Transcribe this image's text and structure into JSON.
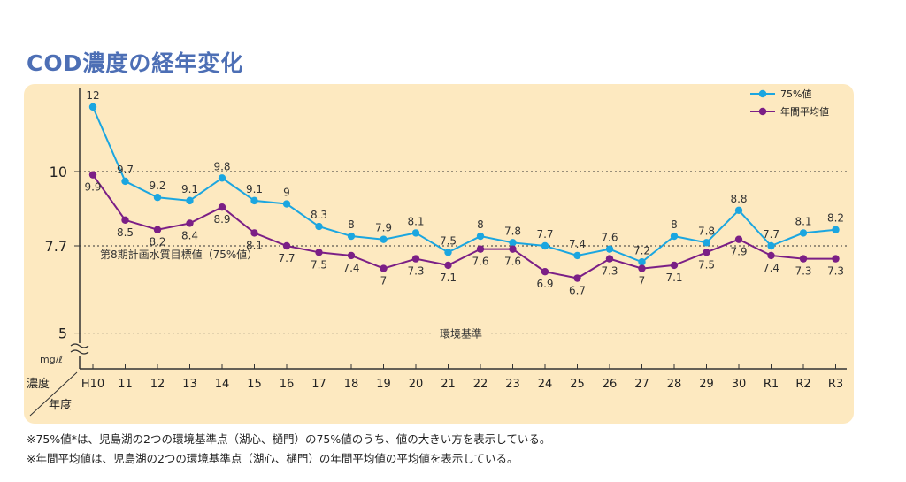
{
  "title": "COD濃度の経年変化",
  "chart_data": {
    "type": "line",
    "categories": [
      "H10",
      "11",
      "12",
      "13",
      "14",
      "15",
      "16",
      "17",
      "18",
      "19",
      "20",
      "21",
      "22",
      "23",
      "24",
      "25",
      "26",
      "27",
      "28",
      "29",
      "30",
      "R1",
      "R2",
      "R3"
    ],
    "series": [
      {
        "name": "75%値",
        "color": "#1ba6e0",
        "values": [
          12,
          9.7,
          9.2,
          9.1,
          9.8,
          9.1,
          9.0,
          8.3,
          8.0,
          7.9,
          8.1,
          7.5,
          8.0,
          7.8,
          7.7,
          7.4,
          7.6,
          7.2,
          8.0,
          7.8,
          8.8,
          7.7,
          8.1,
          8.2
        ]
      },
      {
        "name": "年間平均値",
        "color": "#7b1f86",
        "values": [
          9.9,
          8.5,
          8.2,
          8.4,
          8.9,
          8.1,
          7.7,
          7.5,
          7.4,
          7.0,
          7.3,
          7.1,
          7.6,
          7.6,
          6.9,
          6.7,
          7.3,
          7.0,
          7.1,
          7.5,
          7.9,
          7.4,
          7.3,
          7.3
        ]
      }
    ],
    "y_ticks": [
      "10",
      "7.7",
      "5"
    ],
    "y_unit": "mg/ℓ",
    "axis_corner": {
      "top": "濃度",
      "bottom": "年度"
    },
    "reference_lines": [
      {
        "value": 10,
        "label": ""
      },
      {
        "value": 7.7,
        "label": "第8期計画水質目標値（75%値）"
      },
      {
        "value": 5,
        "label": "環境基準"
      }
    ],
    "axis_break": true,
    "legend_position": "top-right"
  },
  "notes": [
    "※75%値*は、児島湖の2つの環境基準点（湖心、樋門）の75%値のうち、値の大きい方を表示している。",
    "※年間平均値は、児島湖の2つの環境基準点（湖心、樋門）の年間平均値の平均値を表示している。"
  ]
}
